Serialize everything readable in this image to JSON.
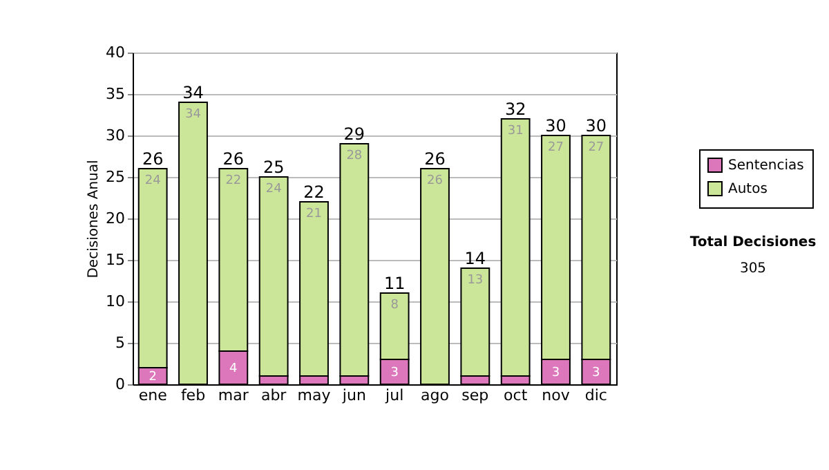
{
  "chart_data": {
    "type": "bar",
    "stacked": true,
    "ylabel": "Decisiones Anual",
    "categories": [
      "ene",
      "feb",
      "mar",
      "abr",
      "may",
      "jun",
      "jul",
      "ago",
      "sep",
      "oct",
      "nov",
      "dic"
    ],
    "series": [
      {
        "name": "Sentencias",
        "color": "#dd77bb",
        "values": [
          2,
          0,
          4,
          1,
          1,
          1,
          3,
          0,
          1,
          1,
          3,
          3
        ],
        "value_labels": [
          "2",
          null,
          "4",
          null,
          null,
          null,
          "3",
          null,
          null,
          null,
          "3",
          "3"
        ]
      },
      {
        "name": "Autos",
        "color": "#cce699",
        "values": [
          24,
          34,
          22,
          24,
          21,
          28,
          8,
          26,
          13,
          31,
          27,
          27
        ],
        "value_labels": [
          "24",
          "34",
          "22",
          "24",
          "21",
          "28",
          "8",
          "26",
          "13",
          "31",
          "27",
          "27"
        ]
      }
    ],
    "totals": [
      "26",
      "34",
      "26",
      "25",
      "22",
      "29",
      "11",
      "26",
      "14",
      "32",
      "30",
      "30"
    ],
    "ylim": [
      0,
      40
    ],
    "yticks": [
      0,
      5,
      10,
      15,
      20,
      25,
      30,
      35,
      40
    ],
    "grid": "y",
    "legend": "right",
    "annotations": [
      "Total Decisiones",
      "305"
    ]
  }
}
